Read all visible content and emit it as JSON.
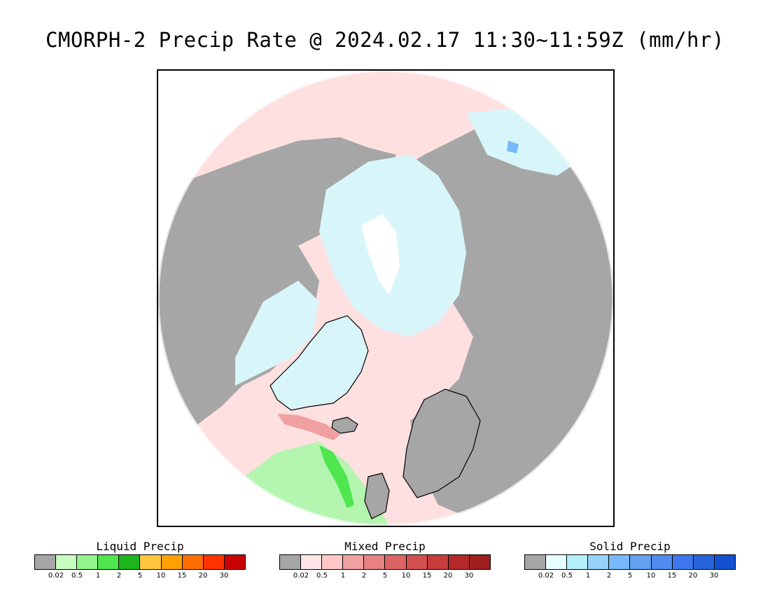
{
  "title": "CMORPH-2 Precip Rate @ 2024.02.17 11:30~11:59Z (mm/hr)",
  "map": {
    "projection": "north-polar-stereographic",
    "no_precip_color": "#a6a6a6"
  },
  "legends": [
    {
      "title": "Liquid Precip",
      "colors": [
        "#a6a6a6",
        "#c8ffc0",
        "#94f58c",
        "#50e650",
        "#1eb41e",
        "#ffc83c",
        "#ffa000",
        "#ff6e00",
        "#ff3200",
        "#c80000"
      ],
      "ticks": [
        "0.02",
        "0.5",
        "1",
        "2",
        "5",
        "10",
        "15",
        "20",
        "30"
      ]
    },
    {
      "title": "Mixed Precip",
      "colors": [
        "#a6a6a6",
        "#ffe6e6",
        "#ffc8c8",
        "#f0a0a0",
        "#e68282",
        "#dc6464",
        "#d25050",
        "#c83c3c",
        "#b42828",
        "#a01e1e"
      ],
      "ticks": [
        "0.02",
        "0.5",
        "1",
        "2",
        "5",
        "10",
        "15",
        "20",
        "30"
      ]
    },
    {
      "title": "Solid Precip",
      "colors": [
        "#a6a6a6",
        "#e6ffff",
        "#b4f0fa",
        "#96d2fa",
        "#78b9fa",
        "#64a0f0",
        "#508cf0",
        "#3c78eb",
        "#2864dc",
        "#1450d2"
      ],
      "ticks": [
        "0.02",
        "0.5",
        "1",
        "2",
        "5",
        "10",
        "15",
        "20",
        "30"
      ]
    }
  ]
}
